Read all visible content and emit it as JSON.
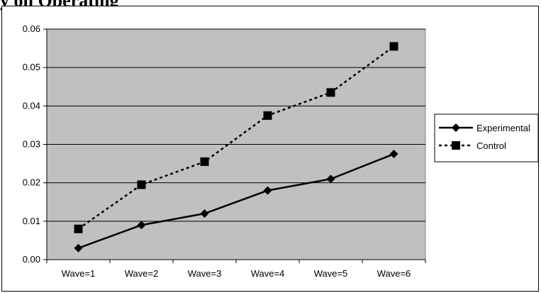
{
  "page": {
    "title": "y on Operating"
  },
  "chart_data": {
    "type": "line",
    "title": "",
    "xlabel": "",
    "ylabel": "",
    "categories": [
      "Wave=1",
      "Wave=2",
      "Wave=3",
      "Wave=4",
      "Wave=5",
      "Wave=6"
    ],
    "ylim": [
      0,
      0.06
    ],
    "yticks": [
      "0.00",
      "0.01",
      "0.02",
      "0.03",
      "0.04",
      "0.05",
      "0.06"
    ],
    "grid": true,
    "plot_background": "#c0c0c0",
    "legend_position": "right",
    "series": [
      {
        "name": "Experimental",
        "values": [
          0.003,
          0.009,
          0.012,
          0.018,
          0.021,
          0.0275
        ],
        "marker": "diamond",
        "line_style": "solid",
        "color": "#000000"
      },
      {
        "name": "Control",
        "values": [
          0.008,
          0.0195,
          0.0255,
          0.0375,
          0.0435,
          0.0555
        ],
        "marker": "square",
        "line_style": "dotted",
        "color": "#000000"
      }
    ]
  }
}
